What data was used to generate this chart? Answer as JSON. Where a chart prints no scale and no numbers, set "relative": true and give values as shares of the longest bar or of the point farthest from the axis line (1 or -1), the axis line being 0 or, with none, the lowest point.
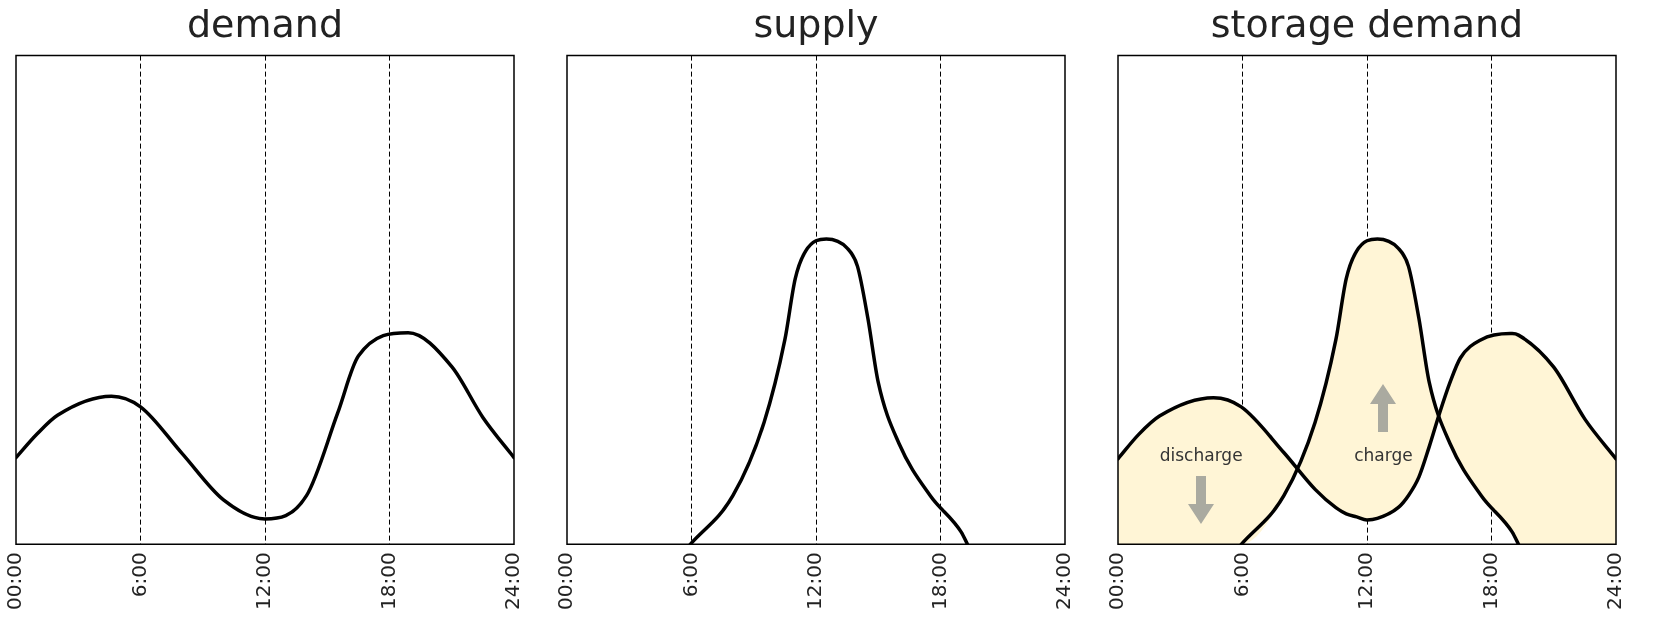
{
  "chart_data": [
    {
      "type": "line",
      "title": "demand",
      "relative": true,
      "xlim": [
        0,
        24
      ],
      "xticks": [
        {
          "value": 0,
          "label": "00:00"
        },
        {
          "value": 6,
          "label": "6:00"
        },
        {
          "value": 12,
          "label": "12:00"
        },
        {
          "value": 18,
          "label": "18:00"
        },
        {
          "value": 24,
          "label": "24:00"
        }
      ],
      "grid": "x",
      "tick_labels": "x",
      "series": [
        {
          "color": "#000000",
          "x": [
            0,
            1,
            2,
            4.6,
            6,
            8,
            10,
            12,
            14,
            15.5,
            16.5,
            18.9,
            21,
            22.5,
            24
          ],
          "values": [
            0.41,
            0.52,
            0.61,
            0.7,
            0.65,
            0.43,
            0.21,
            0.12,
            0.23,
            0.62,
            0.89,
            1,
            0.84,
            0.6,
            0.41
          ]
        }
      ]
    },
    {
      "type": "line",
      "title": "supply",
      "relative": true,
      "xlim": [
        0,
        24
      ],
      "xticks": [
        {
          "value": 0,
          "label": "00:00"
        },
        {
          "value": 6,
          "label": "6:00"
        },
        {
          "value": 12,
          "label": "12:00"
        },
        {
          "value": 18,
          "label": "18:00"
        },
        {
          "value": 24,
          "label": "24:00"
        }
      ],
      "grid": "x",
      "tick_labels": "x",
      "series": [
        {
          "color": "#000000",
          "x": [
            5.94,
            8,
            9.5,
            10.5,
            11,
            11.5,
            12.5,
            13.5,
            14,
            14.5,
            15,
            16,
            17.5,
            19,
            19.3
          ],
          "values": [
            0,
            0.16,
            0.4,
            0.67,
            0.87,
            0.96,
            1,
            0.97,
            0.91,
            0.74,
            0.53,
            0.33,
            0.16,
            0.04,
            0
          ]
        }
      ]
    },
    {
      "type": "line",
      "title": "storage demand",
      "relative": true,
      "xlim": [
        0,
        24
      ],
      "xticks": [
        {
          "value": 0,
          "label": "00:00"
        },
        {
          "value": 6,
          "label": "6:00"
        },
        {
          "value": 12,
          "label": "12:00"
        },
        {
          "value": 18,
          "label": "18:00"
        },
        {
          "value": 24,
          "label": "24:00"
        }
      ],
      "grid": "x",
      "tick_labels": "x",
      "series": [
        {
          "color": "#000000",
          "x": [
            0,
            1,
            2,
            4.6,
            5.94,
            8,
            9.5,
            10.5,
            11,
            11.5,
            12,
            12.5,
            13.5,
            14,
            14.5,
            15,
            15.5,
            16,
            16.5,
            17.5,
            18.9,
            19,
            19.3,
            21,
            22.5,
            24
          ],
          "values": [
            0.28,
            0.36,
            0.42,
            0.48,
            0.45,
            0.3,
            0.18,
            0.12,
            0.1,
            0.09,
            0.08,
            0.085,
            0.12,
            0.16,
            0.22,
            0.32,
            0.43,
            0.53,
            0.61,
            0.67,
            0.69,
            0.69,
            0.685,
            0.58,
            0.41,
            0.28
          ],
          "upper": [
            0.28,
            0.36,
            0.42,
            0.48,
            0.45,
            0.3,
            0.18,
            0.12,
            0.1,
            0.09,
            0.08,
            0.085,
            0.12,
            0.16,
            0.22,
            0.32,
            0.43,
            0.53,
            0.61,
            0.67,
            0.69,
            0.69,
            0.685,
            0.58,
            0.41,
            0.28
          ],
          "lower": [
            0,
            0,
            0,
            0,
            0,
            0.16,
            0.4,
            0.67,
            0.87,
            0.96,
            0.99,
            1,
            0.97,
            0.91,
            0.74,
            0.53,
            0.43,
            0.33,
            0.27,
            0.16,
            0.045,
            0.04,
            0,
            0,
            0,
            0
          ]
        },
        {
          "color": "#000000",
          "x": [
            5.94,
            8,
            9.5,
            10.5,
            11,
            11.5,
            12.5,
            13.5,
            14,
            14.5,
            15,
            16,
            17.5,
            19,
            19.3
          ],
          "values": [
            0,
            0.16,
            0.4,
            0.67,
            0.87,
            0.96,
            1,
            0.97,
            0.91,
            0.74,
            0.53,
            0.33,
            0.16,
            0.04,
            0
          ]
        }
      ],
      "annotations": [
        "discharge",
        "charge"
      ]
    }
  ]
}
